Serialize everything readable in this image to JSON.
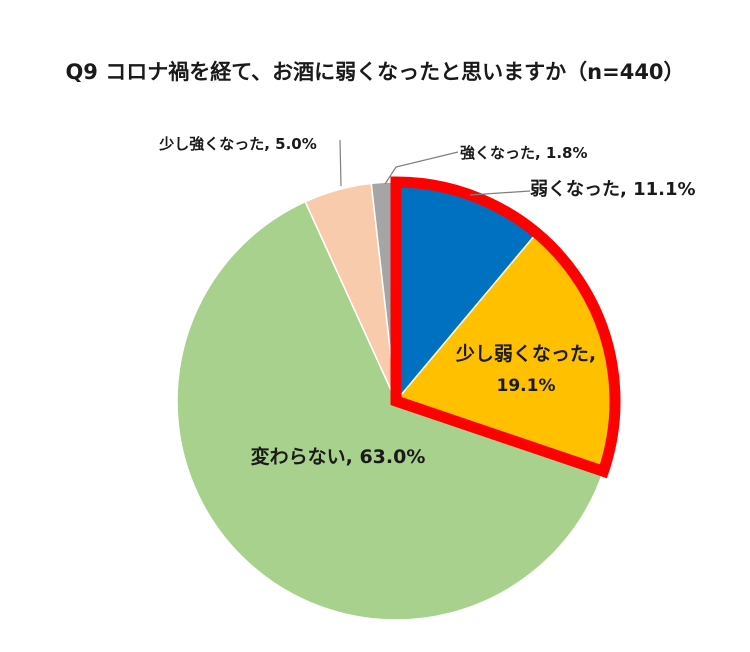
{
  "chart_data": {
    "type": "pie",
    "title": "Q9 コロナ禍を経て、お酒に弱くなったと思いますか（n=440）",
    "slices": [
      {
        "name": "弱くなった",
        "value": 11.1,
        "label": "弱くなった, 11.1%",
        "color": "#0070C0"
      },
      {
        "name": "少し弱くなった",
        "value": 19.1,
        "label_line1": "少し弱くなった,",
        "label_line2": "19.1%",
        "color": "#FFC000"
      },
      {
        "name": "変わらない",
        "value": 63.0,
        "label": "変わらない, 63.0%",
        "color": "#A9D18E"
      },
      {
        "name": "少し強くなった",
        "value": 5.0,
        "label": "少し強くなった, 5.0%",
        "color": "#F8CBAD"
      },
      {
        "name": "強くなった",
        "value": 1.8,
        "label": "強くなった, 1.8%",
        "color": "#A5A5A5"
      }
    ],
    "highlight": {
      "slices": [
        "弱くなった",
        "少し弱くなった"
      ],
      "color": "#FF0000"
    },
    "legend": "none"
  }
}
